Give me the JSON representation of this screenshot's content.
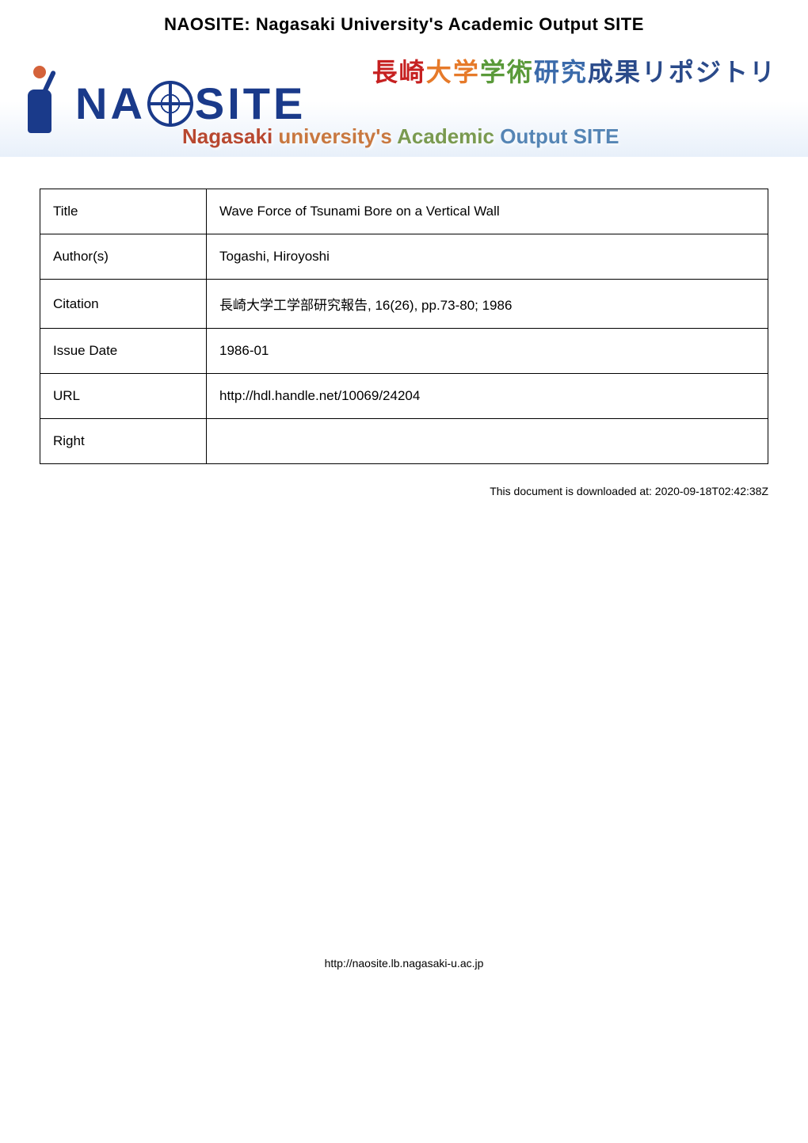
{
  "header": {
    "title": "NAOSITE: Nagasaki University's Academic Output SITE"
  },
  "banner": {
    "jp_title_chars": [
      {
        "text": "長",
        "color": "jp-red"
      },
      {
        "text": "崎",
        "color": "jp-red"
      },
      {
        "text": "大",
        "color": "jp-orange"
      },
      {
        "text": "学",
        "color": "jp-orange"
      },
      {
        "text": "学",
        "color": "jp-green"
      },
      {
        "text": "術",
        "color": "jp-green"
      },
      {
        "text": "研",
        "color": "jp-blue"
      },
      {
        "text": "究",
        "color": "jp-blue"
      },
      {
        "text": "成",
        "color": "jp-darkblue"
      },
      {
        "text": "果",
        "color": "jp-darkblue"
      },
      {
        "text": "リ",
        "color": "jp-darkblue"
      },
      {
        "text": "ポ",
        "color": "jp-darkblue"
      },
      {
        "text": "ジ",
        "color": "jp-darkblue"
      },
      {
        "text": "ト",
        "color": "jp-darkblue"
      },
      {
        "text": "リ",
        "color": "jp-darkblue"
      }
    ],
    "logo_prefix": "NA",
    "logo_suffix": "SITE",
    "en_title_words": [
      {
        "text": "Nagasaki ",
        "color": "en-red"
      },
      {
        "text": "university's ",
        "color": "en-orange"
      },
      {
        "text": "Academic ",
        "color": "en-green"
      },
      {
        "text": "Output ",
        "color": "en-blue"
      },
      {
        "text": "SITE",
        "color": "en-blue"
      }
    ]
  },
  "metadata": {
    "rows": [
      {
        "label": "Title",
        "value": "Wave Force of Tsunami Bore on a Vertical Wall"
      },
      {
        "label": "Author(s)",
        "value": "Togashi, Hiroyoshi"
      },
      {
        "label": "Citation",
        "value": "長崎大学工学部研究報告, 16(26), pp.73-80; 1986"
      },
      {
        "label": "Issue Date",
        "value": "1986-01"
      },
      {
        "label": "URL",
        "value": "http://hdl.handle.net/10069/24204"
      },
      {
        "label": "Right",
        "value": ""
      }
    ]
  },
  "downloaded": "This document is downloaded at: 2020-09-18T02:42:38Z",
  "footer": {
    "url": "http://naosite.lb.nagasaki-u.ac.jp"
  },
  "colors": {
    "border": "#000000",
    "banner_logo": "#1a3a8a",
    "background": "#ffffff"
  }
}
